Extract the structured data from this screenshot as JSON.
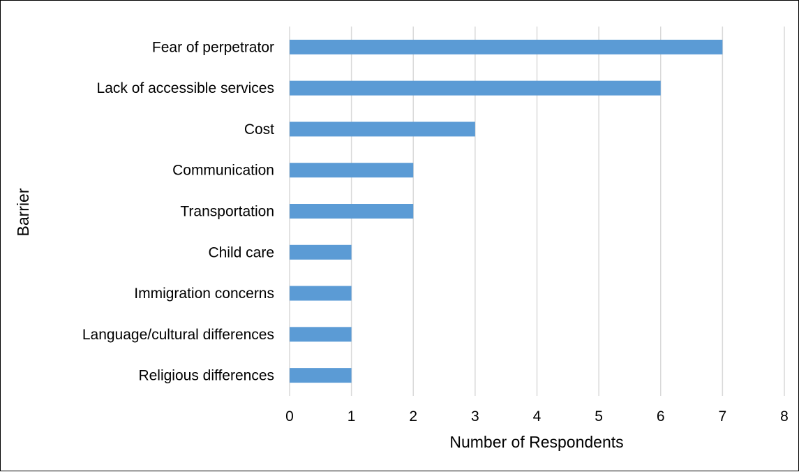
{
  "chart_data": {
    "type": "bar",
    "orientation": "horizontal",
    "categories": [
      "Fear of perpetrator",
      "Lack of accessible services",
      "Cost",
      "Communication",
      "Transportation",
      "Child care",
      "Immigration concerns",
      "Language/cultural differences",
      "Religious differences"
    ],
    "values": [
      7,
      6,
      3,
      2,
      2,
      1,
      1,
      1,
      1
    ],
    "title": "",
    "xlabel": "Number of Respondents",
    "ylabel": "Barrier",
    "xlim": [
      0,
      8
    ],
    "xticks": [
      "0",
      "1",
      "2",
      "3",
      "4",
      "5",
      "6",
      "7",
      "8"
    ],
    "grid": "vertical",
    "legend": "none",
    "bar_color": "#5B9BD5",
    "grid_color": "#D9D9D9"
  }
}
